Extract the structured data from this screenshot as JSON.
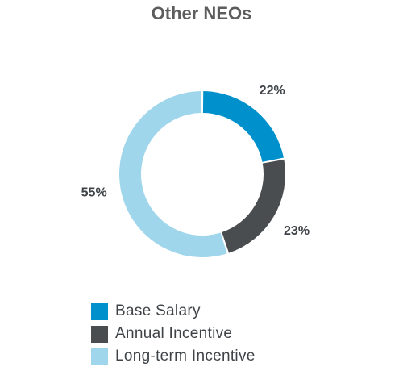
{
  "chart_data": {
    "type": "pie",
    "title": "Other NEOs",
    "donut": true,
    "series": [
      {
        "name": "Base Salary",
        "value": 22,
        "label": "22%",
        "color": "#0091cc"
      },
      {
        "name": "Annual Incentive",
        "value": 23,
        "label": "23%",
        "color": "#4a4d50"
      },
      {
        "name": "Long-term Incentive",
        "value": 55,
        "label": "55%",
        "color": "#9fd6ec"
      }
    ],
    "legend_position": "bottom"
  }
}
